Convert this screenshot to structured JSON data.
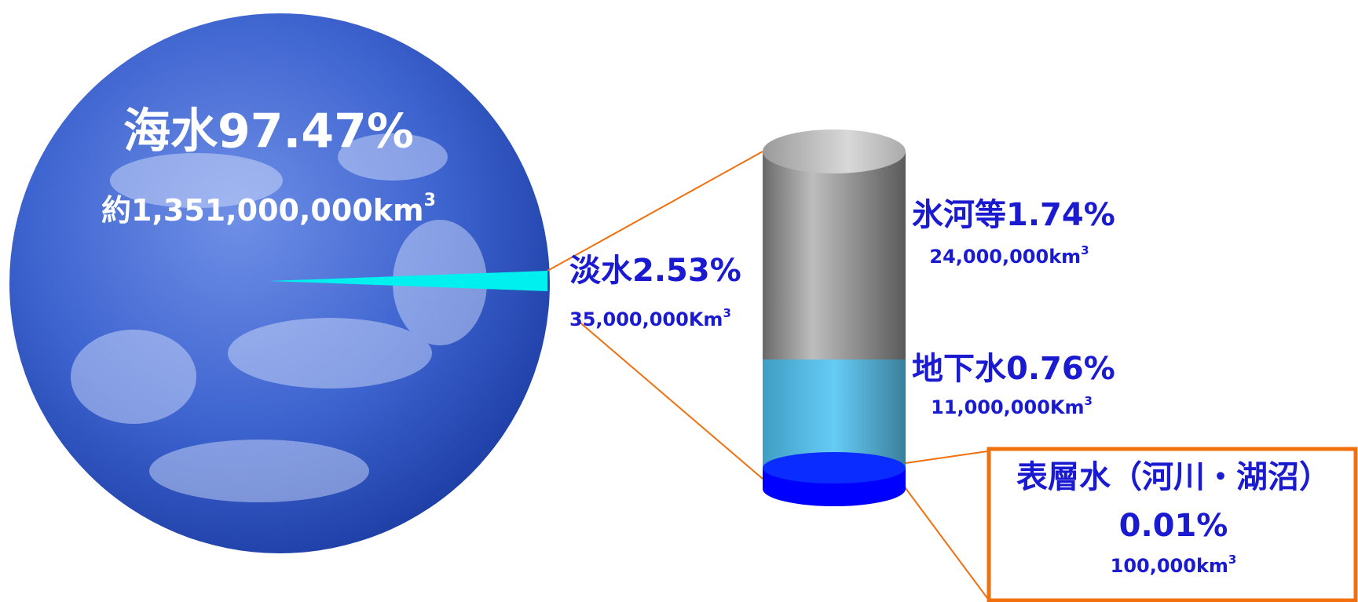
{
  "earth": {
    "seawater": {
      "label": "海水97.47%",
      "volume": {
        "text": "約1,351,000,000km",
        "sup": "3"
      }
    }
  },
  "freshwater": {
    "label": "淡水2.53%",
    "volume": {
      "text": "35,000,000Km",
      "sup": "3"
    }
  },
  "cylinder": {
    "glacier": {
      "label": "氷河等1.74%",
      "volume": {
        "text": "24,000,000km",
        "sup": "3"
      }
    },
    "groundwater": {
      "label": "地下水0.76%",
      "volume": {
        "text": "11,000,000Km",
        "sup": "3"
      }
    },
    "surface": {
      "label": "表層水（河川・湖沼）",
      "percent": "0.01%",
      "volume": {
        "text": "100,000km",
        "sup": "3"
      }
    }
  }
}
